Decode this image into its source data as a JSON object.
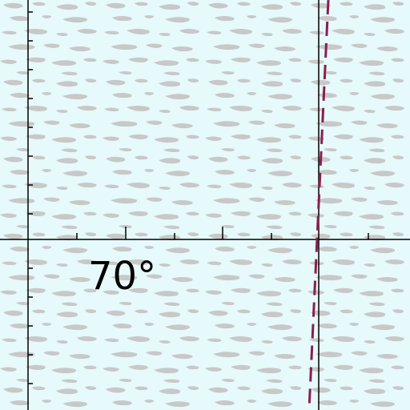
{
  "map": {
    "background_color": "#e6f9fb",
    "ice_pattern_color": "#c8c8c8",
    "grid_line_color": "#000000",
    "boundary_line_color": "#8a1e4f",
    "latitude_label": "70°",
    "boundary_style": "dashed"
  }
}
